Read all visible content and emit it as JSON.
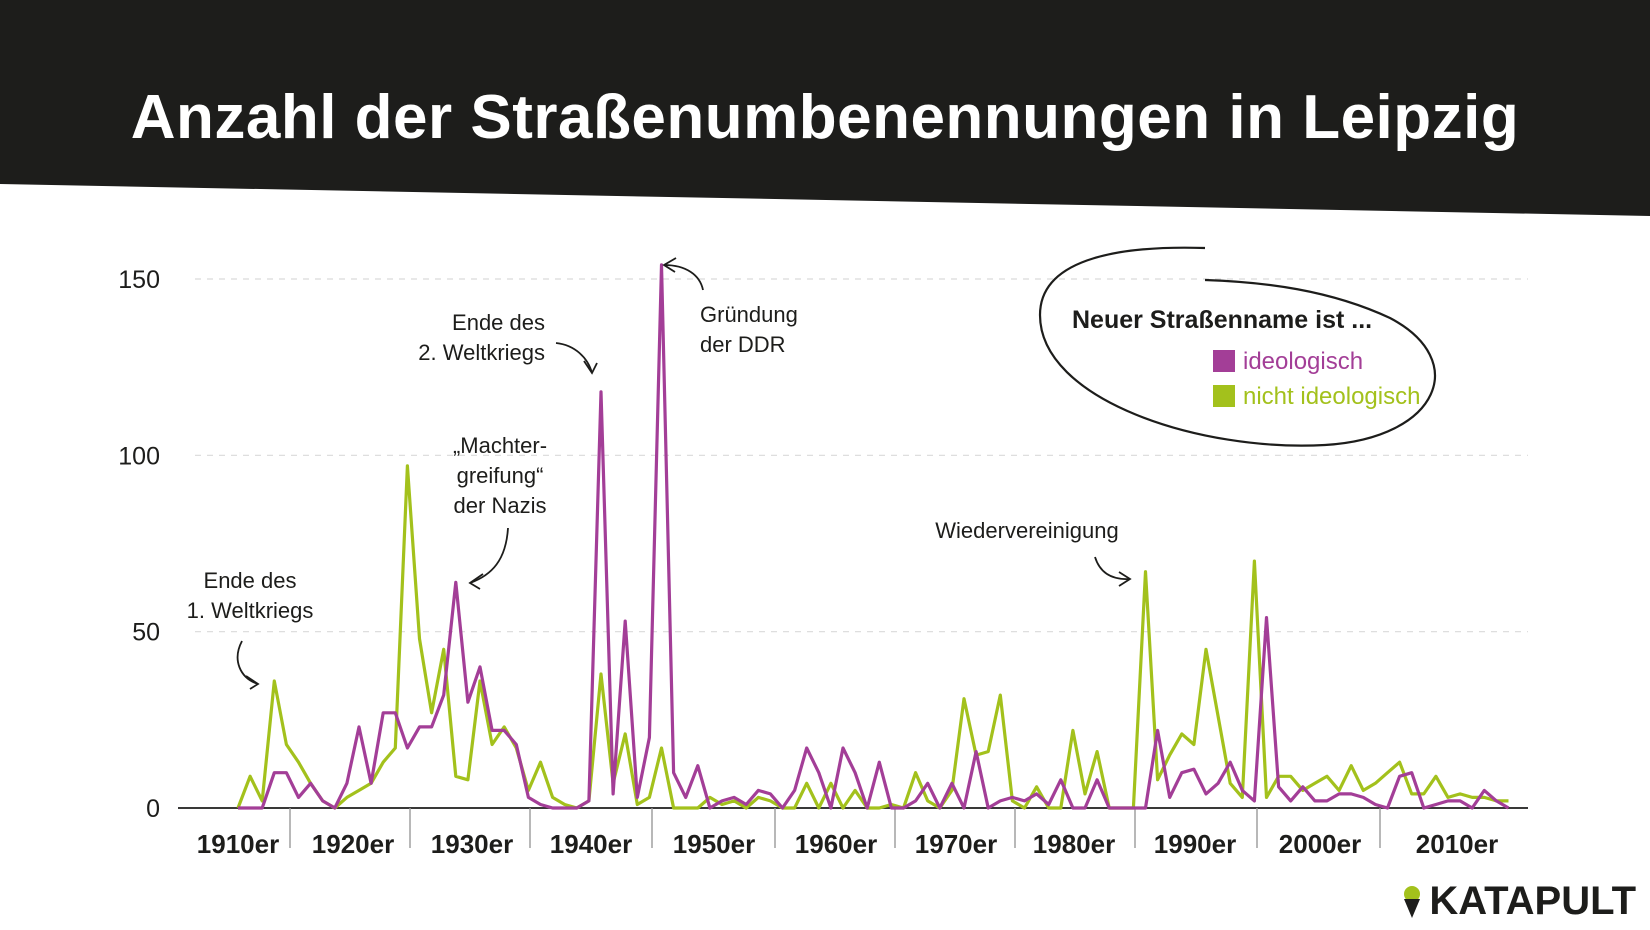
{
  "colors": {
    "header_bg": "#1d1d1b",
    "ideological": "#a33e97",
    "non_ideological": "#a3c11c",
    "text": "#1d1d1b",
    "grid": "#d9d9d9"
  },
  "brand": {
    "name": "KATAPULT",
    "icon": "ice-cream-cone-icon"
  },
  "chart_data": {
    "type": "line",
    "title": "Anzahl der Straßenumbenennungen in Leipzig",
    "ylim": [
      0,
      150
    ],
    "yticks": [
      0,
      50,
      100,
      150
    ],
    "grid": "horizontal dashed",
    "decades": [
      "1910er",
      "1920er",
      "1930er",
      "1940er",
      "1950er",
      "1960er",
      "1970er",
      "1980er",
      "1990er",
      "2000er",
      "2010er"
    ],
    "x": [
      1914,
      1915,
      1916,
      1917,
      1918,
      1919,
      1920,
      1921,
      1922,
      1923,
      1924,
      1925,
      1926,
      1927,
      1928,
      1929,
      1930,
      1931,
      1932,
      1933,
      1934,
      1935,
      1936,
      1937,
      1938,
      1939,
      1940,
      1941,
      1942,
      1943,
      1944,
      1945,
      1946,
      1947,
      1948,
      1949,
      1950,
      1951,
      1952,
      1953,
      1954,
      1955,
      1956,
      1957,
      1958,
      1959,
      1960,
      1961,
      1962,
      1963,
      1964,
      1965,
      1966,
      1967,
      1968,
      1969,
      1970,
      1971,
      1972,
      1973,
      1974,
      1975,
      1976,
      1977,
      1978,
      1979,
      1980,
      1981,
      1982,
      1983,
      1984,
      1985,
      1986,
      1987,
      1988,
      1989,
      1990,
      1991,
      1992,
      1993,
      1994,
      1995,
      1996,
      1997,
      1998,
      1999,
      2000,
      2001,
      2002,
      2003,
      2004,
      2005,
      2006,
      2007,
      2008,
      2009,
      2010,
      2011,
      2012,
      2013,
      2014,
      2015,
      2016,
      2017,
      2018,
      2019
    ],
    "series": [
      {
        "name": "ideologisch",
        "values": [
          0,
          0,
          0,
          10,
          10,
          3,
          7,
          2,
          0,
          7,
          23,
          7,
          27,
          27,
          17,
          23,
          23,
          32,
          64,
          30,
          40,
          22,
          22,
          18,
          3,
          1,
          0,
          0,
          0,
          2,
          118,
          4,
          53,
          3,
          20,
          154,
          10,
          3,
          12,
          0,
          2,
          3,
          1,
          5,
          4,
          0,
          5,
          17,
          10,
          0,
          17,
          10,
          0,
          13,
          0,
          0,
          2,
          7,
          0,
          7,
          0,
          16,
          0,
          2,
          3,
          2,
          4,
          1,
          8,
          0,
          0,
          8,
          0,
          0,
          0,
          0,
          22,
          3,
          10,
          11,
          4,
          7,
          13,
          5,
          2,
          54,
          6,
          2,
          6,
          2,
          2,
          4,
          4,
          3,
          1,
          0,
          9,
          10,
          0,
          1,
          2,
          2,
          0,
          5,
          2,
          0
        ]
      },
      {
        "name": "nicht ideologisch",
        "values": [
          0,
          9,
          2,
          36,
          18,
          13,
          7,
          2,
          0,
          3,
          5,
          7,
          13,
          17,
          97,
          48,
          27,
          45,
          9,
          8,
          36,
          18,
          23,
          17,
          5,
          13,
          3,
          1,
          0,
          2,
          38,
          7,
          21,
          1,
          3,
          17,
          0,
          0,
          0,
          3,
          1,
          2,
          0,
          3,
          2,
          0,
          0,
          7,
          0,
          7,
          0,
          5,
          0,
          0,
          1,
          0,
          10,
          2,
          0,
          5,
          31,
          15,
          16,
          32,
          2,
          0,
          6,
          0,
          0,
          22,
          4,
          16,
          0,
          0,
          0,
          67,
          8,
          15,
          21,
          18,
          45,
          26,
          7,
          3,
          70,
          3,
          9,
          9,
          5,
          7,
          9,
          5,
          12,
          5,
          7,
          10,
          13,
          4,
          4,
          9,
          3,
          4,
          3,
          3,
          2,
          2
        ]
      }
    ],
    "annotations": [
      {
        "id": "ww1",
        "lines": [
          "Ende des",
          "1. Weltkriegs"
        ]
      },
      {
        "id": "nazis",
        "lines": [
          "„Machter-",
          "greifung“",
          "der Nazis"
        ]
      },
      {
        "id": "ww2",
        "lines": [
          "Ende des",
          "2. Weltkriegs"
        ]
      },
      {
        "id": "ddr",
        "lines": [
          "Gründung",
          "der DDR"
        ]
      },
      {
        "id": "reunification",
        "lines": [
          "Wiedervereinigung"
        ]
      }
    ],
    "legend": {
      "title": "Neuer Straßenname ist ...",
      "items": [
        "ideologisch",
        "nicht ideologisch"
      ]
    }
  }
}
